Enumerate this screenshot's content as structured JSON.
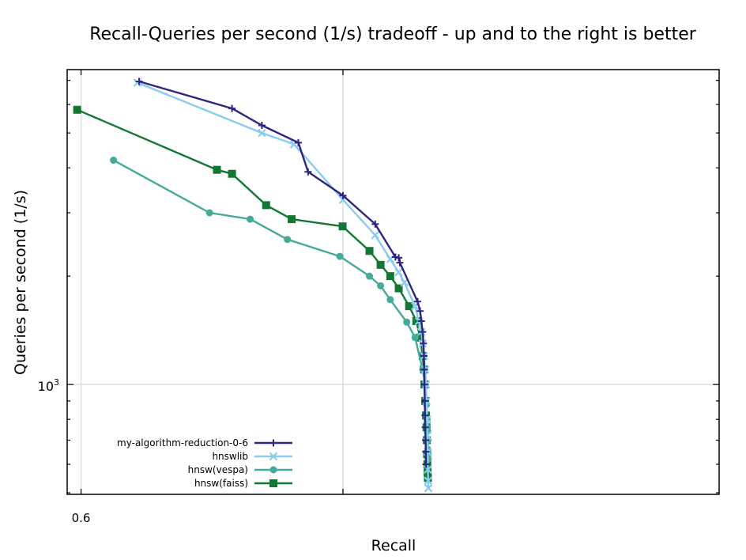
{
  "chart_data": {
    "type": "line",
    "title": "Recall-Queries per second (1/s) tradeoff - up and to the right is better",
    "xlabel": "Recall",
    "ylabel": "Queries per second (1/s)",
    "x_scale": "logit",
    "y_scale": "log",
    "xlim": [
      0.577,
      0.9916
    ],
    "ylim": [
      495,
      7500
    ],
    "x_ticks": [
      {
        "value": 0.6,
        "label": "0.6"
      }
    ],
    "x_ticks_unlabeled": [
      0.9
    ],
    "y_ticks": [
      {
        "value": 1000,
        "label": "10",
        "exp": "3"
      }
    ],
    "grid": true,
    "legend_position": "lower-left",
    "series": [
      {
        "name": "my-algorithm-reduction-0-6",
        "color": "#2f2580",
        "marker": "plus",
        "points": [
          [
            0.6906,
            6950
          ],
          [
            0.8082,
            5850
          ],
          [
            0.8379,
            5250
          ],
          [
            0.869,
            4700
          ],
          [
            0.8764,
            3900
          ],
          [
            0.9,
            3350
          ],
          [
            0.9182,
            2790
          ],
          [
            0.928,
            2260
          ],
          [
            0.9295,
            2250
          ],
          [
            0.93,
            2180
          ],
          [
            0.9375,
            1700
          ],
          [
            0.9385,
            1600
          ],
          [
            0.939,
            1500
          ],
          [
            0.9395,
            1400
          ],
          [
            0.9398,
            1300
          ],
          [
            0.94,
            1200
          ],
          [
            0.9401,
            1100
          ],
          [
            0.9402,
            1000
          ],
          [
            0.9403,
            900
          ],
          [
            0.9404,
            820
          ],
          [
            0.9405,
            760
          ],
          [
            0.9406,
            700
          ],
          [
            0.9407,
            650
          ],
          [
            0.9408,
            600
          ]
        ]
      },
      {
        "name": "hnswlib",
        "color": "#88ccee",
        "marker": "x",
        "points": [
          [
            0.6881,
            6900
          ],
          [
            0.8379,
            5000
          ],
          [
            0.8656,
            4650
          ],
          [
            0.9,
            3260
          ],
          [
            0.9182,
            2600
          ],
          [
            0.9256,
            2230
          ],
          [
            0.9295,
            2050
          ],
          [
            0.932,
            1920
          ],
          [
            0.9365,
            1650
          ],
          [
            0.938,
            1500
          ],
          [
            0.939,
            1400
          ],
          [
            0.9395,
            1300
          ],
          [
            0.94,
            1200
          ],
          [
            0.9405,
            1100
          ],
          [
            0.9408,
            1000
          ],
          [
            0.941,
            900
          ],
          [
            0.9412,
            800
          ],
          [
            0.9413,
            720
          ],
          [
            0.9414,
            650
          ],
          [
            0.9415,
            580
          ],
          [
            0.9416,
            540
          ],
          [
            0.9417,
            515
          ]
        ]
      },
      {
        "name": "hnsw(vespa)",
        "color": "#44aa99",
        "marker": "circle",
        "points": [
          [
            0.6519,
            4200
          ],
          [
            0.7832,
            3000
          ],
          [
            0.8267,
            2880
          ],
          [
            0.8602,
            2530
          ],
          [
            0.8981,
            2270
          ],
          [
            0.9152,
            2000
          ],
          [
            0.9209,
            1880
          ],
          [
            0.9256,
            1720
          ],
          [
            0.933,
            1490
          ],
          [
            0.9365,
            1350
          ],
          [
            0.9395,
            1100
          ],
          [
            0.9405,
            1000
          ],
          [
            0.941,
            880
          ],
          [
            0.9412,
            800
          ],
          [
            0.9413,
            760
          ],
          [
            0.9414,
            740
          ],
          [
            0.9415,
            700
          ],
          [
            0.9415,
            660
          ],
          [
            0.9416,
            640
          ],
          [
            0.9416,
            620
          ]
        ]
      },
      {
        "name": "hnsw(faiss)",
        "color": "#117733",
        "marker": "square",
        "points": [
          [
            0.5936,
            5800
          ],
          [
            0.7917,
            3950
          ],
          [
            0.8082,
            3850
          ],
          [
            0.8418,
            3150
          ],
          [
            0.8637,
            2880
          ],
          [
            0.8998,
            2750
          ],
          [
            0.9152,
            2350
          ],
          [
            0.9209,
            2150
          ],
          [
            0.9256,
            2000
          ],
          [
            0.9295,
            1850
          ],
          [
            0.934,
            1650
          ],
          [
            0.937,
            1500
          ],
          [
            0.9385,
            1350
          ],
          [
            0.9395,
            1200
          ],
          [
            0.94,
            1100
          ],
          [
            0.9402,
            1000
          ],
          [
            0.9405,
            900
          ],
          [
            0.9408,
            820
          ],
          [
            0.941,
            760
          ],
          [
            0.9411,
            700
          ],
          [
            0.9412,
            640
          ],
          [
            0.9413,
            600
          ],
          [
            0.9414,
            570
          ],
          [
            0.9415,
            550
          ]
        ]
      }
    ]
  }
}
